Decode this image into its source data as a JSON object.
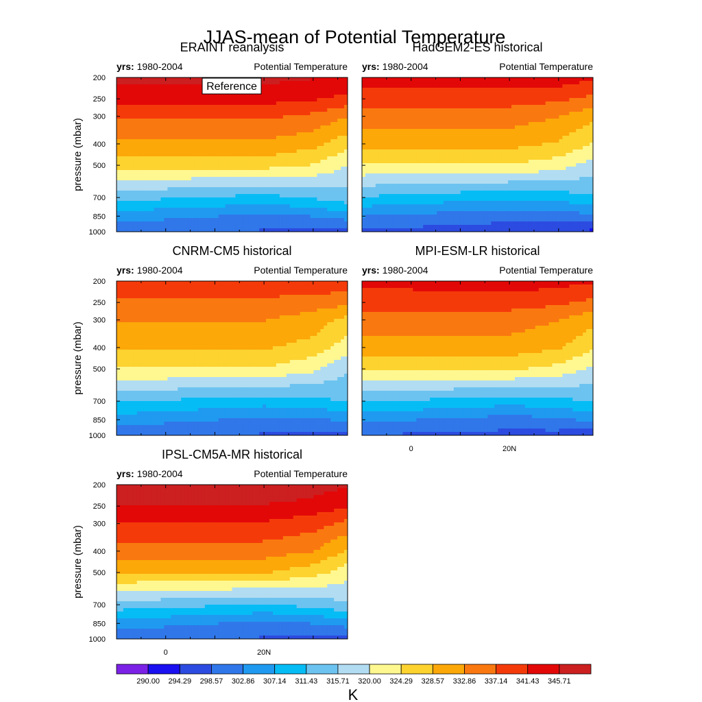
{
  "title": "JJAS-mean of Potential Temperature",
  "colorbar": {
    "unit": "K",
    "ticks": [
      "290.00",
      "294.29",
      "298.57",
      "302.86",
      "307.14",
      "311.43",
      "315.71",
      "320.00",
      "324.29",
      "328.57",
      "332.86",
      "337.14",
      "341.43",
      "345.71"
    ],
    "colors": [
      "#7B22E6",
      "#1A10F0",
      "#2C4BE0",
      "#3077EA",
      "#1F9AF0",
      "#06BCF5",
      "#6CC3F0",
      "#B2DCF2",
      "#FFF890",
      "#FDD330",
      "#FCA808",
      "#FA7810",
      "#F53A0A",
      "#E30808",
      "#CC1F20",
      "#F5B5B5"
    ]
  },
  "reference_label": "Reference",
  "chart_data": [
    {
      "type": "heatmap",
      "subtype": "filled-contour",
      "model": "ERAINT reanalysis",
      "left_label_bold": "yrs:",
      "left_label": "1980-2004",
      "right_label": "Potential Temperature",
      "ylabel": "pressure (mbar)",
      "y_ticks": [
        "200",
        "250",
        "300",
        "400",
        "500",
        "700",
        "850",
        "1000"
      ],
      "x_ticks": [],
      "x": [
        "-10",
        "0",
        "10",
        "20",
        "30",
        "37"
      ],
      "y": [
        200,
        250,
        300,
        400,
        500,
        700,
        850,
        1000
      ],
      "z": [
        [
          347,
          347,
          347,
          347,
          346,
          346
        ],
        [
          343,
          343,
          343,
          343,
          342,
          340
        ],
        [
          338,
          338,
          338,
          338,
          336,
          333
        ],
        [
          332,
          332,
          332,
          332,
          330,
          326
        ],
        [
          326,
          326,
          326,
          326,
          324,
          320
        ],
        [
          313,
          312,
          311,
          310,
          312,
          314
        ],
        [
          305,
          304,
          303,
          302,
          303,
          305
        ],
        [
          299,
          299,
          299,
          298,
          298,
          296
        ]
      ]
    },
    {
      "type": "heatmap",
      "subtype": "filled-contour",
      "model": "HadGEM2-ES historical",
      "left_label_bold": "yrs:",
      "left_label": "1980-2004",
      "right_label": "Potential Temperature",
      "ylabel": "",
      "y_ticks": [],
      "x_ticks": [],
      "x": [
        "-10",
        "0",
        "10",
        "20",
        "30",
        "37"
      ],
      "y": [
        200,
        250,
        300,
        400,
        500,
        700,
        850,
        1000
      ],
      "z": [
        [
          344,
          344,
          344,
          344,
          344,
          342
        ],
        [
          339,
          339,
          339,
          339,
          338,
          336
        ],
        [
          335,
          335,
          335,
          335,
          333,
          330
        ],
        [
          330,
          330,
          330,
          330,
          328,
          324
        ],
        [
          324,
          324,
          324,
          324,
          322,
          318
        ],
        [
          311,
          310,
          309,
          308,
          309,
          311
        ],
        [
          303,
          302,
          301,
          300,
          300,
          302
        ],
        [
          297,
          297,
          297,
          296,
          296,
          293
        ]
      ]
    },
    {
      "type": "heatmap",
      "subtype": "filled-contour",
      "model": "CNRM-CM5 historical",
      "left_label_bold": "yrs:",
      "left_label": "1980-2004",
      "right_label": "Potential Temperature",
      "ylabel": "pressure (mbar)",
      "y_ticks": [
        "200",
        "250",
        "300",
        "400",
        "500",
        "700",
        "850",
        "1000"
      ],
      "x_ticks": [],
      "x": [
        "-10",
        "0",
        "10",
        "20",
        "30",
        "37"
      ],
      "y": [
        200,
        250,
        300,
        400,
        500,
        700,
        850,
        1000
      ],
      "z": [
        [
          341,
          341,
          341,
          341,
          341,
          340
        ],
        [
          336,
          336,
          336,
          336,
          335,
          334
        ],
        [
          333,
          333,
          333,
          333,
          331,
          327
        ],
        [
          329,
          329,
          329,
          329,
          327,
          322
        ],
        [
          324,
          324,
          324,
          324,
          321,
          316
        ],
        [
          312,
          311,
          310,
          309,
          310,
          312
        ],
        [
          305,
          304,
          303,
          302,
          302,
          304
        ],
        [
          299,
          299,
          299,
          298,
          297,
          296
        ]
      ]
    },
    {
      "type": "heatmap",
      "subtype": "filled-contour",
      "model": "MPI-ESM-LR historical",
      "left_label_bold": "yrs:",
      "left_label": "1980-2004",
      "right_label": "Potential Temperature",
      "ylabel": "",
      "y_ticks": [],
      "x_ticks": [
        "0",
        "20N"
      ],
      "x": [
        "-10",
        "0",
        "10",
        "20",
        "30",
        "37"
      ],
      "y": [
        200,
        250,
        300,
        400,
        500,
        700,
        850,
        1000
      ],
      "z": [
        [
          343,
          343,
          344,
          344,
          343,
          342
        ],
        [
          339,
          339,
          339,
          339,
          338,
          336
        ],
        [
          335,
          335,
          335,
          335,
          333,
          330
        ],
        [
          331,
          331,
          331,
          331,
          329,
          325
        ],
        [
          325,
          325,
          325,
          325,
          323,
          319
        ],
        [
          312,
          311,
          310,
          309,
          310,
          312
        ],
        [
          304,
          303,
          302,
          301,
          302,
          304
        ],
        [
          298,
          298,
          298,
          297,
          297,
          294
        ]
      ]
    },
    {
      "type": "heatmap",
      "subtype": "filled-contour",
      "model": "IPSL-CM5A-MR historical",
      "left_label_bold": "yrs:",
      "left_label": "1980-2004",
      "right_label": "Potential Temperature",
      "ylabel": "pressure (mbar)",
      "y_ticks": [
        "200",
        "250",
        "300",
        "400",
        "500",
        "700",
        "850",
        "1000"
      ],
      "x_ticks": [
        "0",
        "20N"
      ],
      "x": [
        "-10",
        "0",
        "10",
        "20",
        "30",
        "37"
      ],
      "y": [
        200,
        250,
        300,
        400,
        500,
        700,
        850,
        1000
      ],
      "z": [
        [
          351,
          351,
          351,
          352,
          348,
          346
        ],
        [
          345,
          345,
          345,
          345,
          344,
          342
        ],
        [
          341,
          341,
          341,
          341,
          339,
          336
        ],
        [
          335,
          335,
          335,
          335,
          333,
          328
        ],
        [
          329,
          329,
          329,
          329,
          326,
          322
        ],
        [
          314,
          313,
          312,
          311,
          313,
          315
        ],
        [
          305,
          304,
          303,
          302,
          303,
          305
        ],
        [
          299,
          299,
          299,
          298,
          298,
          296
        ]
      ]
    }
  ]
}
